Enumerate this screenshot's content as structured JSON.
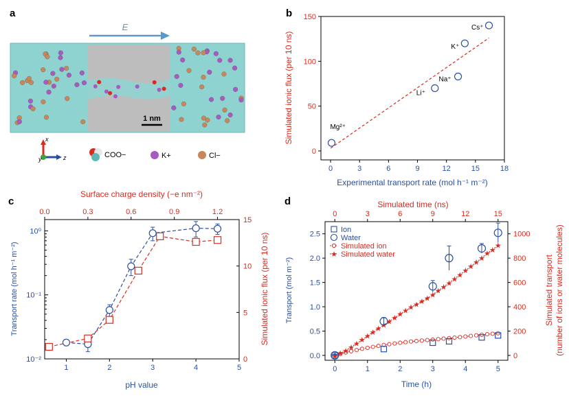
{
  "colors": {
    "blue": "#2b4fa0",
    "red": "#d92b1f",
    "black": "#000000",
    "arrow": "#5b98c8",
    "water": "#8fd3d0",
    "membrane": "#b8b8b8"
  },
  "panel_a": {
    "label": "a",
    "field_label": "E",
    "scale_bar_label": "1 nm",
    "axes": {
      "x": "x",
      "y": "y",
      "z": "z"
    },
    "legend": [
      {
        "label": "COO−",
        "icon": "coo-molecule-icon"
      },
      {
        "label": "K+",
        "icon": "potassium-sphere-icon"
      },
      {
        "label": "Cl−",
        "icon": "chloride-sphere-icon"
      }
    ]
  },
  "chart_data": [
    {
      "id": "b",
      "panel_label": "b",
      "type": "scatter",
      "xlabel": "Experimental transport rate (mol h⁻¹ m⁻²)",
      "ylabel": "Simulated ionic flux (per 10 ns)",
      "xlim": [
        -1,
        18
      ],
      "ylim": [
        -10,
        150
      ],
      "xticks": [
        0,
        3,
        6,
        9,
        12,
        15,
        18
      ],
      "yticks": [
        0,
        50,
        100,
        150
      ],
      "points": [
        {
          "label": "Mg²⁺",
          "x": 0.1,
          "y": 9
        },
        {
          "label": "Li⁺",
          "x": 10.8,
          "y": 70
        },
        {
          "label": "Na⁺",
          "x": 13.2,
          "y": 83
        },
        {
          "label": "K⁺",
          "x": 13.9,
          "y": 120
        },
        {
          "label": "Cs⁺",
          "x": 16.4,
          "y": 140
        }
      ],
      "fit_line": {
        "x": [
          0,
          16.4
        ],
        "y": [
          3,
          126
        ]
      },
      "grid": false
    },
    {
      "id": "c",
      "panel_label": "c",
      "type": "scatter",
      "xlabel": "pH value",
      "ylabel": "Transport rate (mol h⁻¹ m⁻²)",
      "top_xlabel": "Surface charge density (−e nm⁻²)",
      "right_ylabel": "Simulated ionic flux (per 10 ns)",
      "xlim": [
        0.5,
        5
      ],
      "xticks": [
        1,
        2,
        3,
        4,
        5
      ],
      "ylim_log": [
        0.01,
        1.5
      ],
      "yticks_log": [
        "10⁻²",
        "10⁻¹",
        "10⁰"
      ],
      "top_xlim": [
        0,
        1.35
      ],
      "top_xticks": [
        "0.0",
        "0.3",
        "0.6",
        "0.9",
        "1.2"
      ],
      "right_ylim": [
        0,
        15
      ],
      "right_yticks": [
        0,
        5,
        10,
        15
      ],
      "series": [
        {
          "name": "Transport rate",
          "marker": "circle",
          "x": [
            1.0,
            1.5,
            2.0,
            2.5,
            3.0,
            4.0,
            4.5
          ],
          "y": [
            0.018,
            0.017,
            0.058,
            0.28,
            0.92,
            1.1,
            1.08
          ],
          "err": [
            0.002,
            0.004,
            0.012,
            0.08,
            0.22,
            0.3,
            0.2
          ]
        },
        {
          "name": "Simulated ionic flux",
          "marker": "square",
          "x": [
            0.03,
            0.3,
            0.45,
            0.65,
            0.8,
            1.05,
            1.2
          ],
          "y": [
            1.3,
            2.2,
            4.2,
            9.5,
            13.2,
            12.6,
            12.8
          ]
        }
      ],
      "grid": false
    },
    {
      "id": "d",
      "panel_label": "d",
      "type": "line",
      "xlabel": "Time (h)",
      "ylabel": "Transport (mol m⁻²)",
      "top_xlabel": "Simulated time (ns)",
      "right_ylabel": "Simulated transport\n(number of ions or water molecules)",
      "xlim": [
        -0.3,
        5.3
      ],
      "xticks": [
        0,
        1,
        2,
        3,
        4,
        5
      ],
      "ylim": [
        -0.1,
        2.75
      ],
      "yticks": [
        "0.0",
        "0.5",
        "1.0",
        "1.5",
        "2.0",
        "2.5"
      ],
      "top_xlim": [
        -0.9,
        15.9
      ],
      "top_xticks": [
        0,
        3,
        6,
        9,
        12,
        15
      ],
      "right_ylim": [
        -40,
        1100
      ],
      "right_yticks": [
        0,
        200,
        400,
        600,
        800,
        1000
      ],
      "legend": [
        "Ion",
        "Water",
        "Simulated ion",
        "Simulated water"
      ],
      "series": [
        {
          "name": "Ion",
          "marker": "square",
          "x": [
            0,
            1.5,
            3.0,
            3.5,
            4.5,
            5.0
          ],
          "y": [
            0.0,
            0.13,
            0.26,
            0.29,
            0.37,
            0.41
          ]
        },
        {
          "name": "Water",
          "marker": "circle",
          "x": [
            0,
            1.5,
            3.0,
            3.5,
            4.5,
            5.0
          ],
          "y": [
            0.0,
            0.7,
            1.42,
            2.0,
            2.2,
            2.52
          ],
          "err": [
            0.02,
            0.08,
            0.12,
            0.25,
            0.1,
            0.2
          ]
        },
        {
          "name": "Simulated ion",
          "marker": "small-circle",
          "t_ns": [
            0,
            0.5,
            1,
            1.5,
            2,
            2.5,
            3,
            3.5,
            4,
            4.5,
            5,
            5.5,
            6,
            6.5,
            7,
            7.5,
            8,
            8.5,
            9,
            9.5,
            10,
            10.5,
            11,
            11.5,
            12,
            12.5,
            13,
            13.5,
            14,
            14.5,
            15
          ],
          "y": [
            0,
            12,
            24,
            34,
            44,
            54,
            62,
            70,
            78,
            86,
            92,
            98,
            104,
            109,
            114,
            118,
            122,
            126,
            130,
            134,
            138,
            142,
            146,
            150,
            155,
            160,
            165,
            170,
            174,
            178,
            182
          ]
        },
        {
          "name": "Simulated water",
          "marker": "star",
          "t_ns": [
            0,
            0.5,
            1,
            1.5,
            2,
            2.5,
            3,
            3.5,
            4,
            4.5,
            5,
            5.5,
            6,
            6.5,
            7,
            7.5,
            8,
            8.5,
            9,
            9.5,
            10,
            10.5,
            11,
            11.5,
            12,
            12.5,
            13,
            13.5,
            14,
            14.5,
            15
          ],
          "y": [
            0,
            18,
            40,
            68,
            98,
            128,
            160,
            192,
            222,
            252,
            280,
            310,
            340,
            368,
            396,
            420,
            444,
            470,
            500,
            532,
            564,
            596,
            630,
            664,
            698,
            732,
            766,
            800,
            840,
            870,
            905
          ]
        }
      ],
      "grid": false
    }
  ]
}
